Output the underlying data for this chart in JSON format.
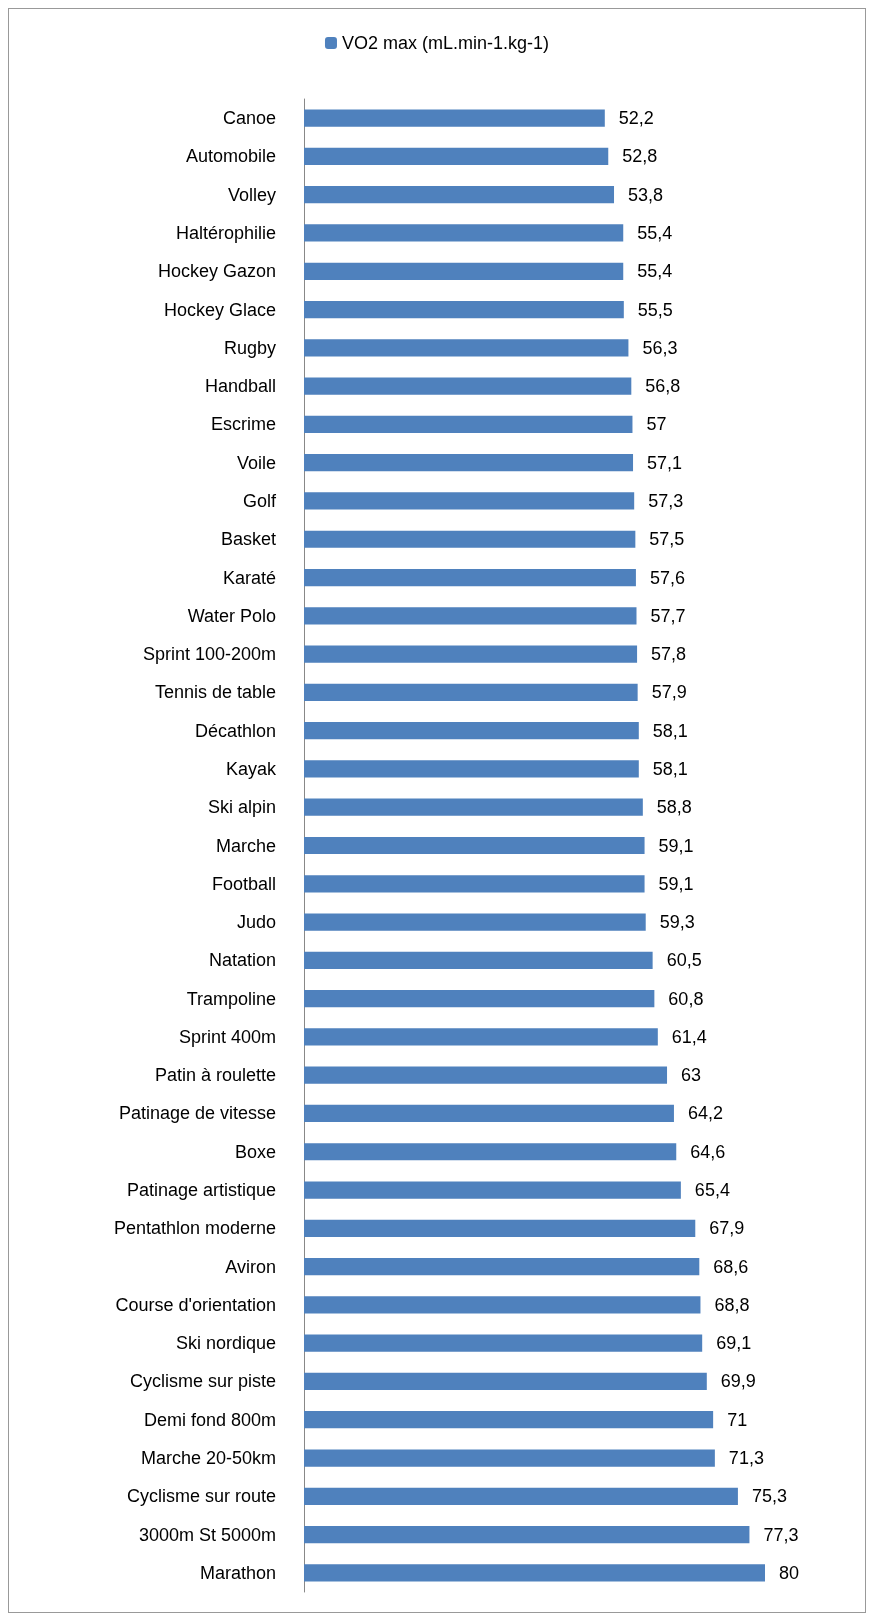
{
  "chart_data": {
    "type": "bar",
    "orientation": "horizontal",
    "legend": "top",
    "categories": [
      "Canoe",
      "Automobile",
      "Volley",
      "Haltérophilie",
      "Hockey Gazon",
      "Hockey Glace",
      "Rugby",
      "Handball",
      "Escrime",
      "Voile",
      "Golf",
      "Basket",
      "Karaté",
      "Water Polo",
      "Sprint 100-200m",
      "Tennis de table",
      "Décathlon",
      "Kayak",
      "Ski alpin",
      "Marche",
      "Football",
      "Judo",
      "Natation",
      "Trampoline",
      "Sprint 400m",
      "Patin à roulette",
      "Patinage de vitesse",
      "Boxe",
      "Patinage artistique",
      "Pentathlon moderne",
      "Aviron",
      "Course d'orientation",
      "Ski nordique",
      "Cyclisme sur piste",
      "Demi fond 800m",
      "Marche 20-50km",
      "Cyclisme sur route",
      "3000m St 5000m",
      "Marathon"
    ],
    "series": [
      {
        "name": "VO2 max (mL.min-1.kg-1)",
        "color": "#4f81bd",
        "values": [
          52.2,
          52.8,
          53.8,
          55.4,
          55.4,
          55.5,
          56.3,
          56.8,
          57,
          57.1,
          57.3,
          57.5,
          57.6,
          57.7,
          57.8,
          57.9,
          58.1,
          58.1,
          58.8,
          59.1,
          59.1,
          59.3,
          60.5,
          60.8,
          61.4,
          63,
          64.2,
          64.6,
          65.4,
          67.9,
          68.6,
          68.8,
          69.1,
          69.9,
          71,
          71.3,
          75.3,
          77.3,
          80
        ],
        "value_labels": [
          "52,2",
          "52,8",
          "53,8",
          "55,4",
          "55,4",
          "55,5",
          "56,3",
          "56,8",
          "57",
          "57,1",
          "57,3",
          "57,5",
          "57,6",
          "57,7",
          "57,8",
          "57,9",
          "58,1",
          "58,1",
          "58,8",
          "59,1",
          "59,1",
          "59,3",
          "60,5",
          "60,8",
          "61,4",
          "63",
          "64,2",
          "64,6",
          "65,4",
          "67,9",
          "68,6",
          "68,8",
          "69,1",
          "69,9",
          "71",
          "71,3",
          "75,3",
          "77,3",
          "80"
        ]
      }
    ]
  }
}
